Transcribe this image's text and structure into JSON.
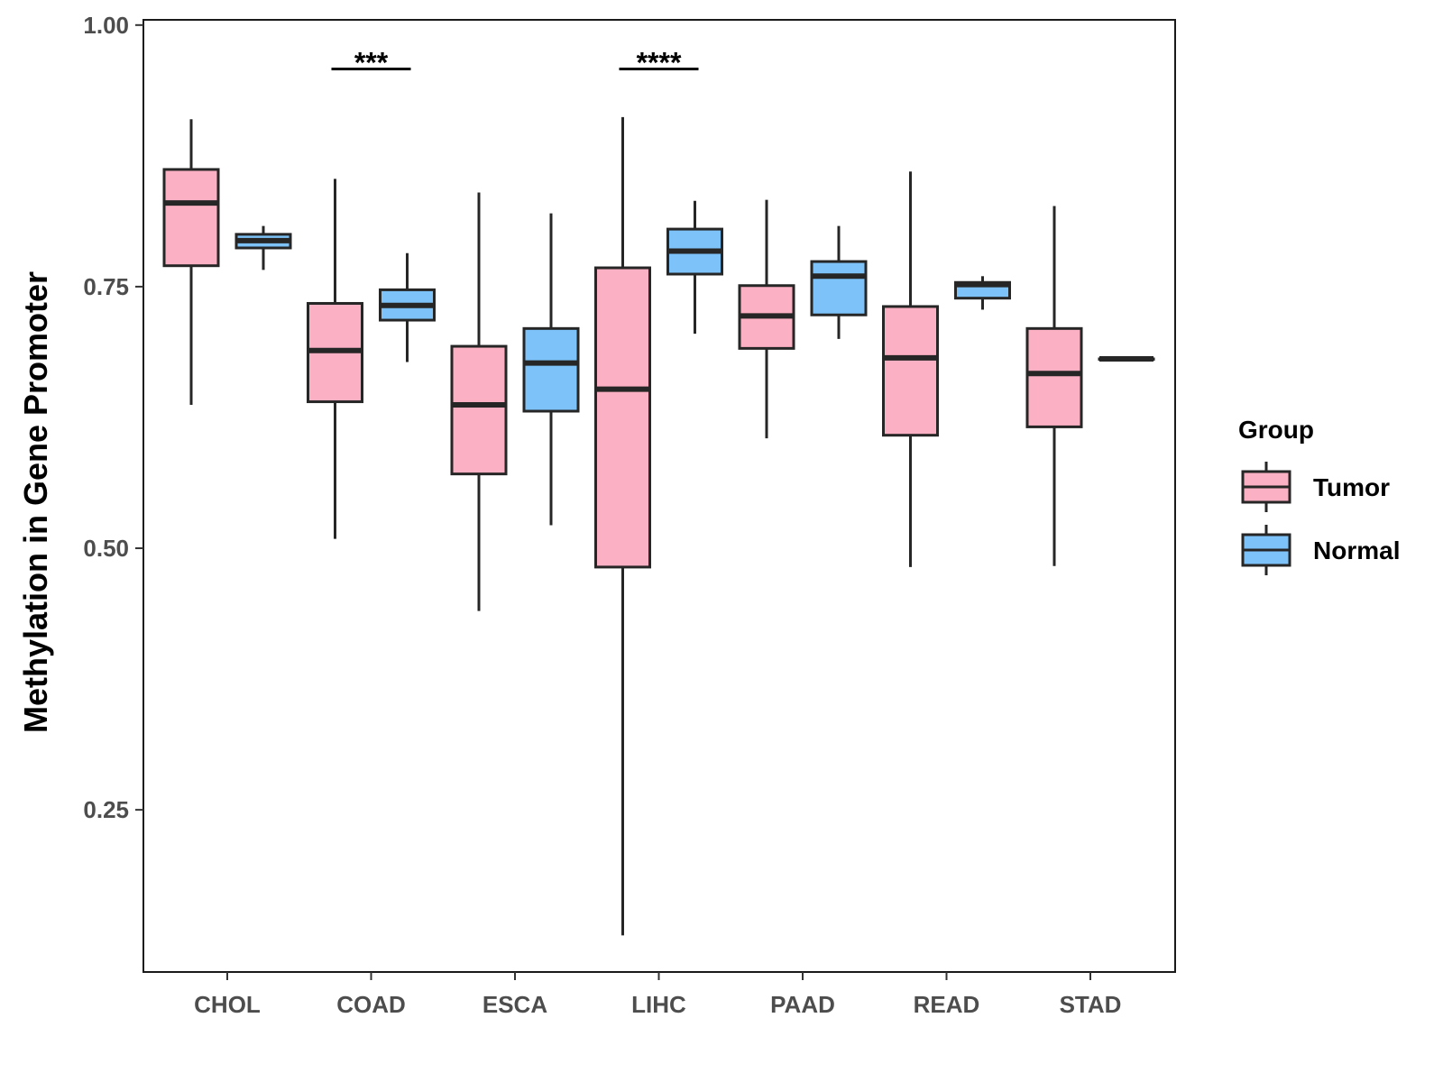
{
  "chart_data": {
    "type": "boxplot",
    "title": "",
    "xlabel": "",
    "ylabel": "Methylation in Gene Promoter",
    "ylim": [
      0.095,
      1.005
    ],
    "yticks": [
      0.25,
      0.5,
      0.75,
      1.0
    ],
    "ytick_labels": [
      "0.25",
      "0.50",
      "0.75",
      "1.00"
    ],
    "categories": [
      "CHOL",
      "COAD",
      "ESCA",
      "LIHC",
      "PAAD",
      "READ",
      "STAD"
    ],
    "legend": {
      "title": "Group",
      "position": "right",
      "entries": [
        {
          "name": "Tumor",
          "color": "#FCB0C3"
        },
        {
          "name": "Normal",
          "color": "#7DC3F9"
        }
      ]
    },
    "series": [
      {
        "name": "Tumor",
        "color": "#FCB0C3",
        "boxes": [
          {
            "category": "CHOL",
            "min": 0.637,
            "q1": 0.77,
            "median": 0.83,
            "q3": 0.862,
            "max": 0.91
          },
          {
            "category": "COAD",
            "min": 0.509,
            "q1": 0.64,
            "median": 0.689,
            "q3": 0.734,
            "max": 0.853
          },
          {
            "category": "ESCA",
            "min": 0.44,
            "q1": 0.571,
            "median": 0.637,
            "q3": 0.693,
            "max": 0.84
          },
          {
            "category": "LIHC",
            "min": 0.13,
            "q1": 0.482,
            "median": 0.652,
            "q3": 0.768,
            "max": 0.912
          },
          {
            "category": "PAAD",
            "min": 0.605,
            "q1": 0.691,
            "median": 0.722,
            "q3": 0.751,
            "max": 0.833
          },
          {
            "category": "READ",
            "min": 0.482,
            "q1": 0.608,
            "median": 0.682,
            "q3": 0.731,
            "max": 0.86
          },
          {
            "category": "STAD",
            "min": 0.483,
            "q1": 0.616,
            "median": 0.667,
            "q3": 0.71,
            "max": 0.827
          }
        ]
      },
      {
        "name": "Normal",
        "color": "#7DC3F9",
        "boxes": [
          {
            "category": "CHOL",
            "min": 0.766,
            "q1": 0.787,
            "median": 0.794,
            "q3": 0.8,
            "max": 0.808
          },
          {
            "category": "COAD",
            "min": 0.678,
            "q1": 0.718,
            "median": 0.732,
            "q3": 0.747,
            "max": 0.782
          },
          {
            "category": "ESCA",
            "min": 0.522,
            "q1": 0.631,
            "median": 0.677,
            "q3": 0.71,
            "max": 0.82
          },
          {
            "category": "LIHC",
            "min": 0.705,
            "q1": 0.762,
            "median": 0.784,
            "q3": 0.805,
            "max": 0.832
          },
          {
            "category": "PAAD",
            "min": 0.7,
            "q1": 0.723,
            "median": 0.76,
            "q3": 0.774,
            "max": 0.808
          },
          {
            "category": "READ",
            "min": 0.728,
            "q1": 0.739,
            "median": 0.752,
            "q3": 0.754,
            "max": 0.76
          },
          {
            "category": "STAD",
            "min": 0.681,
            "q1": 0.681,
            "median": 0.681,
            "q3": 0.681,
            "max": 0.681
          }
        ]
      }
    ],
    "annotations": [
      {
        "category": "COAD",
        "label": "***",
        "y": 0.958
      },
      {
        "category": "LIHC",
        "label": "****",
        "y": 0.958
      }
    ]
  }
}
